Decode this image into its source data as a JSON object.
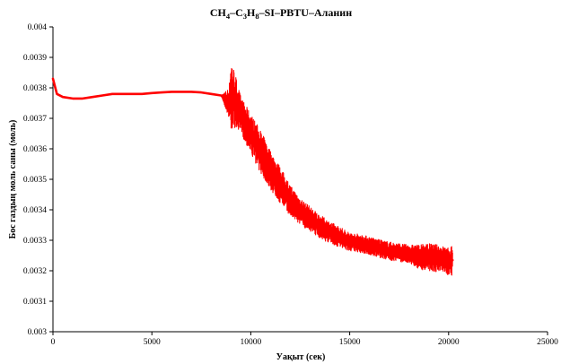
{
  "chart_data": {
    "type": "line",
    "title_parts": [
      {
        "text": "CH",
        "sub": false
      },
      {
        "text": "4",
        "sub": true
      },
      {
        "text": "–C",
        "sub": false
      },
      {
        "text": "3",
        "sub": true
      },
      {
        "text": "H",
        "sub": false
      },
      {
        "text": "8",
        "sub": true
      },
      {
        "text": "–SI–PBTU–Аланин",
        "sub": false
      }
    ],
    "xlabel": "Уақыт (сек)",
    "ylabel": "Бос газдың моль саны (моль)",
    "xlim": [
      0,
      25000
    ],
    "ylim": [
      0.003,
      0.004
    ],
    "x_ticks": [
      "0",
      "5000",
      "10000",
      "15000",
      "20000",
      "25000"
    ],
    "y_ticks": [
      "0.003",
      "0.0031",
      "0.0032",
      "0.0033",
      "0.0034",
      "0.0035",
      "0.0036",
      "0.0037",
      "0.0038",
      "0.0039",
      "0.004"
    ],
    "grid": false,
    "legend": "none",
    "series": [
      {
        "color": "#ff0000",
        "x": [
          0,
          200,
          500,
          1000,
          1500,
          2000,
          2500,
          3000,
          3500,
          4000,
          4500,
          5000,
          5500,
          6000,
          6500,
          7000,
          7500,
          8000,
          8500,
          8900,
          9000,
          9200,
          9500,
          10000,
          10500,
          11000,
          11500,
          12000,
          12500,
          13000,
          13500,
          14000,
          14500,
          15000,
          15500,
          16000,
          16500,
          17000,
          17500,
          18000,
          18500,
          19000,
          19500,
          20000,
          20200
        ],
        "y": [
          0.00383,
          0.00378,
          0.00377,
          0.003765,
          0.003765,
          0.00377,
          0.003775,
          0.00378,
          0.00378,
          0.00378,
          0.00378,
          0.003783,
          0.003785,
          0.003787,
          0.003787,
          0.003787,
          0.003785,
          0.00378,
          0.003775,
          0.00375,
          0.00378,
          0.00376,
          0.00371,
          0.00365,
          0.00359,
          0.00353,
          0.00348,
          0.00343,
          0.003395,
          0.00337,
          0.003345,
          0.003325,
          0.00331,
          0.003295,
          0.00329,
          0.003282,
          0.003272,
          0.003265,
          0.00326,
          0.003255,
          0.003245,
          0.003245,
          0.00324,
          0.00323,
          0.003235
        ],
        "noise": [
          0,
          0,
          0,
          0,
          0,
          0,
          0,
          0,
          0,
          0,
          0,
          0,
          0,
          0,
          0,
          0,
          0,
          0,
          0,
          5e-05,
          0.00012,
          9e-05,
          6e-05,
          6.5e-05,
          7e-05,
          6.5e-05,
          6e-05,
          5e-05,
          4.5e-05,
          4e-05,
          3.8e-05,
          3.6e-05,
          3.4e-05,
          3e-05,
          3e-05,
          3e-05,
          3e-05,
          3e-05,
          3e-05,
          3e-05,
          4e-05,
          4.5e-05,
          4.5e-05,
          4.5e-05,
          5e-05
        ]
      }
    ]
  }
}
